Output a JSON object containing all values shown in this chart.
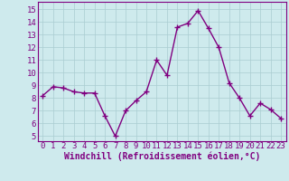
{
  "x": [
    0,
    1,
    2,
    3,
    4,
    5,
    6,
    7,
    8,
    9,
    10,
    11,
    12,
    13,
    14,
    15,
    16,
    17,
    18,
    19,
    20,
    21,
    22,
    23
  ],
  "y": [
    8.2,
    8.9,
    8.8,
    8.5,
    8.4,
    8.4,
    6.6,
    5.0,
    7.0,
    7.8,
    8.5,
    11.0,
    9.8,
    13.6,
    13.9,
    14.9,
    13.5,
    12.0,
    9.2,
    8.0,
    6.6,
    7.6,
    7.1,
    6.4
  ],
  "line_color": "#800080",
  "marker": "+",
  "marker_size": 4,
  "bg_color": "#ceeaed",
  "grid_color": "#aacdd1",
  "ylabel_ticks": [
    5,
    6,
    7,
    8,
    9,
    10,
    11,
    12,
    13,
    14,
    15
  ],
  "ylim": [
    4.6,
    15.6
  ],
  "xlim": [
    -0.5,
    23.5
  ],
  "xlabel": "Windchill (Refroidissement éolien,°C)",
  "xlabel_color": "#800080",
  "tick_color": "#800080",
  "line_width": 1.0,
  "font_size": 6.5,
  "label_font_size": 7.0
}
